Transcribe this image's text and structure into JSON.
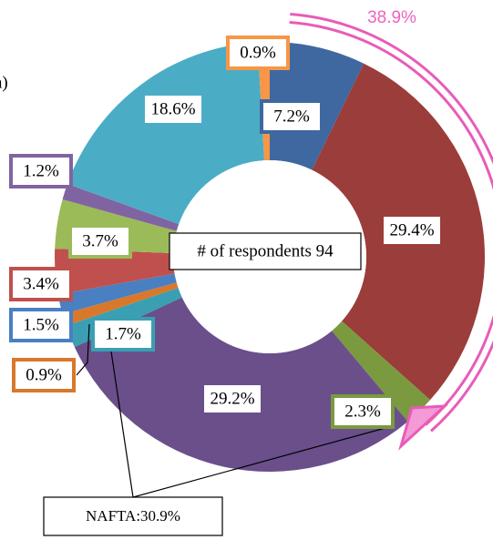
{
  "chart_data": {
    "type": "donut",
    "values": [
      7.2,
      29.4,
      2.3,
      29.2,
      1.7,
      0.9,
      1.5,
      3.4,
      3.7,
      1.2,
      18.6,
      0.9
    ],
    "value_labels": [
      "7.2%",
      "29.4%",
      "2.3%",
      "29.2%",
      "1.7%",
      "0.9%",
      "1.5%",
      "3.4%",
      "3.7%",
      "1.2%",
      "18.6%",
      "0.9%"
    ],
    "colors": [
      "#3f68a0",
      "#9b3d3b",
      "#7b9a3f",
      "#6a4f8b",
      "#3a9fb2",
      "#d9782b",
      "#4a7fc2",
      "#c0504d",
      "#9bbb59",
      "#8064a2",
      "#4bacc6",
      "#f79646"
    ],
    "center_label": "# of respondents 94",
    "annotations": [
      "38.9%",
      "NAFTA:30.9%",
      "a)"
    ]
  }
}
